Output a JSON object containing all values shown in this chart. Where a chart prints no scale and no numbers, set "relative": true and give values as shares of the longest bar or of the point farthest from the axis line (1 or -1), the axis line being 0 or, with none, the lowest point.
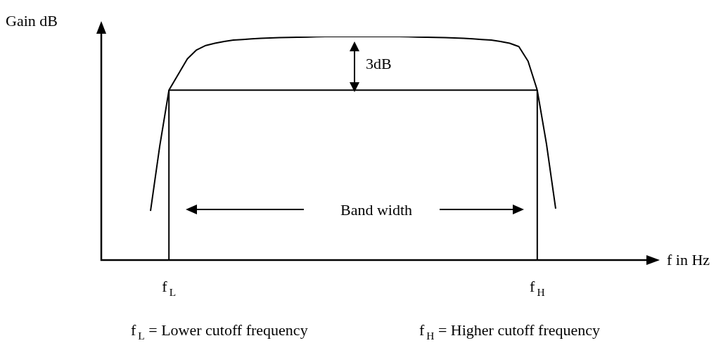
{
  "chart_data": {
    "type": "line",
    "relative": true,
    "legend": false,
    "marker": "none",
    "line_style": "solid",
    "tick_labels": "x",
    "categories": [
      null,
      null,
      "f$_{L}$",
      null,
      null,
      null,
      null,
      null,
      null,
      null,
      null,
      null,
      null,
      null,
      null,
      null,
      null,
      null,
      null,
      null,
      null,
      null,
      null,
      null,
      null,
      null,
      null,
      null,
      null,
      null,
      null,
      null,
      null,
      null,
      null,
      null,
      null,
      null,
      null,
      null,
      null,
      null,
      "f$_{H}$",
      null,
      null
    ],
    "series": [
      {
        "color": "#000000",
        "values": [
          0.22,
          0.51,
          0.76,
          0.83,
          0.9,
          0.94,
          0.96,
          0.97,
          0.978,
          0.984,
          0.987,
          0.99,
          0.992,
          0.994,
          0.995,
          0.996,
          0.997,
          0.998,
          0.999,
          1,
          1,
          1,
          1,
          1,
          1,
          1,
          1,
          1,
          0.999,
          0.998,
          0.997,
          0.996,
          0.995,
          0.994,
          0.992,
          0.99,
          0.987,
          0.984,
          0.978,
          0.97,
          0.955,
          0.89,
          0.76,
          0.52,
          0.23
        ]
      },
      {
        "color": "#000000",
        "values": [
          null,
          null,
          0.76,
          0.76,
          0.76,
          0.76,
          0.76,
          0.76,
          0.76,
          0.76,
          0.76,
          0.76,
          0.76,
          0.76,
          0.76,
          0.76,
          0.76,
          0.76,
          0.76,
          0.76,
          0.76,
          0.76,
          0.76,
          0.76,
          0.76,
          0.76,
          0.76,
          0.76,
          0.76,
          0.76,
          0.76,
          0.76,
          0.76,
          0.76,
          0.76,
          0.76,
          0.76,
          0.76,
          0.76,
          0.76,
          0.76,
          0.76,
          0.76,
          null,
          null
        ]
      }
    ],
    "ref_lines": [
      {
        "axis": "x",
        "value": "f$_{L}$",
        "color": "#000000"
      },
      {
        "axis": "x",
        "value": "f$_{H}$",
        "color": "#000000"
      }
    ],
    "annotations": [
      "Gain dB",
      "f in Hz",
      "3dB",
      "Band width",
      "f$_{L}$ = Lower cutoff frequency",
      "f$_{H}$ = Higher cutoff frequency"
    ]
  }
}
